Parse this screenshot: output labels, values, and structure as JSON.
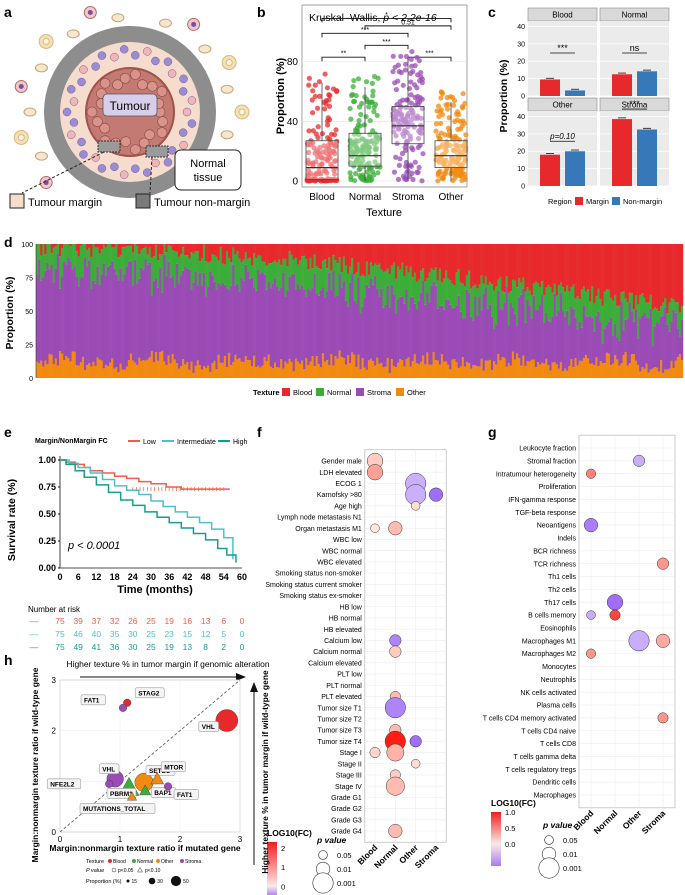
{
  "panels": {
    "a": {
      "label": "a",
      "tumour": "Tumour",
      "normal_tissue": "Normal\ntissue",
      "normal_line1": "Normal",
      "normal_line2": "tissue",
      "legend_margin": "Tumour margin",
      "legend_nonmargin": "Tumour non-margin"
    },
    "b": {
      "label": "b"
    },
    "c": {
      "label": "c"
    },
    "d": {
      "label": "d"
    },
    "e": {
      "label": "e"
    },
    "f": {
      "label": "f"
    },
    "g": {
      "label": "g"
    },
    "h": {
      "label": "h"
    }
  },
  "colors": {
    "blood": "#e8292c",
    "normal": "#3dad3a",
    "stroma": "#9a4bb5",
    "other": "#f28a10",
    "margin": "#e8292c",
    "nonmargin": "#3778b9",
    "km_low": "#ee5e48",
    "km_int": "#4cc1cc",
    "km_high": "#1a9c8a"
  },
  "chart_data": [
    {
      "id": "b",
      "type": "box",
      "title": "Kruskal–Wallis, ",
      "title_p": "p < 2.2e-16",
      "xlabel": "Texture",
      "ylabel": "Proportion (%)",
      "categories": [
        "Blood",
        "Normal",
        "Stroma",
        "Other"
      ],
      "ylim": [
        0,
        100
      ],
      "yticks": [
        "0",
        "40",
        "80"
      ],
      "boxes": [
        {
          "q1": 1,
          "median": 9,
          "q3": 27,
          "whisker_low": 0,
          "whisker_high": 66
        },
        {
          "q1": 10,
          "median": 17,
          "q3": 32,
          "whisker_low": 0,
          "whisker_high": 63
        },
        {
          "q1": 25,
          "median": 37,
          "q3": 50,
          "whisker_low": 0,
          "whisker_high": 82
        },
        {
          "q1": 9,
          "median": 17,
          "q3": 27,
          "whisker_low": 0,
          "whisker_high": 53
        }
      ],
      "comparisons": [
        {
          "from": 0,
          "to": 1,
          "label": "**"
        },
        {
          "from": 1,
          "to": 2,
          "label": "***"
        },
        {
          "from": 2,
          "to": 3,
          "label": "***"
        },
        {
          "from": 0,
          "to": 2,
          "label": "***"
        },
        {
          "from": 1,
          "to": 3,
          "label": "0.51"
        },
        {
          "from": 0,
          "to": 3,
          "label": "*"
        }
      ]
    },
    {
      "id": "c",
      "type": "bar",
      "ylabel": "Proportion (%)",
      "legend_title": "Region",
      "series_names": [
        "Margin",
        "Non-margin"
      ],
      "yticks": [
        "0",
        "10",
        "20",
        "30",
        "40"
      ],
      "ylim": [
        0,
        40
      ],
      "facets": [
        {
          "name": "Blood",
          "values": [
            9.5,
            3.2
          ],
          "sig": "***"
        },
        {
          "name": "Normal",
          "values": [
            12.5,
            14.2
          ],
          "sig": "ns"
        },
        {
          "name": "Other",
          "values": [
            18,
            20
          ],
          "sig": "p=0.10"
        },
        {
          "name": "Stroma",
          "values": [
            38.5,
            32.5
          ],
          "sig": "***"
        }
      ]
    },
    {
      "id": "d",
      "type": "stacked-bar",
      "ylabel": "Proportion (%)",
      "yticks": [
        "0",
        "25",
        "50",
        "75",
        "100"
      ],
      "ylim": [
        0,
        100
      ],
      "legend_title": "Texture",
      "series_names": [
        "Blood",
        "Normal",
        "Stroma",
        "Other"
      ],
      "n_samples": 310,
      "trend": {
        "blood_start": 2,
        "blood_end": 48,
        "normal_mean": 18,
        "stroma_start": 72,
        "stroma_end": 22,
        "other_start": 12,
        "other_end": 10
      }
    },
    {
      "id": "e",
      "type": "line",
      "title": "Margin/NonMargin FC",
      "series_names": [
        "Low",
        "Intermediate",
        "High"
      ],
      "xlabel": "Time (months)",
      "ylabel": "Survival rate (%)",
      "xticks": [
        "0",
        "6",
        "12",
        "18",
        "24",
        "30",
        "36",
        "42",
        "48",
        "54",
        "60"
      ],
      "yticks": [
        "0.00",
        "0.25",
        "0.50",
        "0.75",
        "1.00"
      ],
      "xlim": [
        0,
        60
      ],
      "ylim": [
        0,
        1
      ],
      "pvalue": "p < 0.0001",
      "series": [
        {
          "name": "Low",
          "x": [
            0,
            2,
            5,
            8,
            10,
            14,
            18,
            22,
            26,
            30,
            35,
            40,
            45,
            50,
            56
          ],
          "y": [
            1.0,
            0.98,
            0.96,
            0.93,
            0.9,
            0.88,
            0.85,
            0.83,
            0.8,
            0.78,
            0.75,
            0.73,
            0.73,
            0.73,
            0.73
          ]
        },
        {
          "name": "Intermediate",
          "x": [
            0,
            3,
            6,
            10,
            14,
            18,
            22,
            26,
            30,
            34,
            38,
            42,
            46,
            50,
            54,
            57
          ],
          "y": [
            1.0,
            0.97,
            0.93,
            0.88,
            0.82,
            0.76,
            0.72,
            0.68,
            0.62,
            0.57,
            0.52,
            0.47,
            0.42,
            0.36,
            0.28,
            0.08
          ]
        },
        {
          "name": "High",
          "x": [
            0,
            2,
            5,
            8,
            12,
            16,
            20,
            24,
            28,
            32,
            36,
            40,
            44,
            48,
            52,
            55,
            58
          ],
          "y": [
            1.0,
            0.96,
            0.9,
            0.84,
            0.77,
            0.7,
            0.63,
            0.58,
            0.52,
            0.47,
            0.42,
            0.37,
            0.32,
            0.26,
            0.18,
            0.12,
            0.05
          ]
        }
      ],
      "risk_title": "Number at risk",
      "risk_table": [
        [
          "75",
          "39",
          "37",
          "32",
          "26",
          "25",
          "19",
          "16",
          "13",
          "6",
          "0"
        ],
        [
          "75",
          "46",
          "40",
          "35",
          "30",
          "25",
          "23",
          "15",
          "12",
          "5",
          "0"
        ],
        [
          "75",
          "49",
          "41",
          "36",
          "30",
          "25",
          "19",
          "13",
          "8",
          "2",
          "0"
        ]
      ],
      "risk_marker": "—"
    },
    {
      "id": "f",
      "type": "dot",
      "rows": [
        "Gender male",
        "LDH elevated",
        "ECOG 1",
        "Karnofsky >80",
        "Age high",
        "Lymph node metastasis N1",
        "Organ metastasis M1",
        "WBC low",
        "WBC normal",
        "WBC elevated",
        "Smoking status non-smoker",
        "Smoking status current smoker",
        "Smoking status ex-smoker",
        "HB low",
        "HB normal",
        "HB elevated",
        "Calcium low",
        "Calcium normal",
        "Calcium elevated",
        "PLT low",
        "PLT normal",
        "PLT elevated",
        "Tumor size T1",
        "Tumor size T2",
        "Tumor size T3",
        "Tumor size T4",
        "Stage I",
        "Stage II",
        "Stage III",
        "Stage IV",
        "Grade G1",
        "Grade G2",
        "Grade G3",
        "Grade G4"
      ],
      "columns": [
        "Blood",
        "Normal",
        "Other",
        "Stroma"
      ],
      "dots": [
        {
          "row": 0,
          "col": 0,
          "p": 0.005,
          "fc": 0.3
        },
        {
          "row": 1,
          "col": 0,
          "p": 0.005,
          "fc": 0.8
        },
        {
          "row": 2,
          "col": 2,
          "p": 0.001,
          "fc": -0.2
        },
        {
          "row": 3,
          "col": 2,
          "p": 0.001,
          "fc": -0.2
        },
        {
          "row": 3,
          "col": 3,
          "p": 0.01,
          "fc": -0.5
        },
        {
          "row": 4,
          "col": 2,
          "p": 0.05,
          "fc": 0.1
        },
        {
          "row": 6,
          "col": 0,
          "p": 0.05,
          "fc": 0.0
        },
        {
          "row": 6,
          "col": 1,
          "p": 0.01,
          "fc": 0.5
        },
        {
          "row": 16,
          "col": 1,
          "p": 0.02,
          "fc": -0.4
        },
        {
          "row": 17,
          "col": 1,
          "p": 0.02,
          "fc": 0.3
        },
        {
          "row": 21,
          "col": 1,
          "p": 0.03,
          "fc": 0.5
        },
        {
          "row": 22,
          "col": 1,
          "p": 0.001,
          "fc": -0.4
        },
        {
          "row": 24,
          "col": 1,
          "p": 0.02,
          "fc": 0.5
        },
        {
          "row": 25,
          "col": 1,
          "p": 0.001,
          "fc": 2.3
        },
        {
          "row": 25,
          "col": 2,
          "p": 0.02,
          "fc": -0.6
        },
        {
          "row": 26,
          "col": 0,
          "p": 0.03,
          "fc": 0.2
        },
        {
          "row": 26,
          "col": 1,
          "p": 0.003,
          "fc": 0.6
        },
        {
          "row": 27,
          "col": 2,
          "p": 0.05,
          "fc": 0.1
        },
        {
          "row": 28,
          "col": 1,
          "p": 0.03,
          "fc": 0.3
        },
        {
          "row": 29,
          "col": 1,
          "p": 0.002,
          "fc": 0.5
        },
        {
          "row": 33,
          "col": 1,
          "p": 0.01,
          "fc": 0.5
        }
      ],
      "legend_fc_title": "LOG10(FC)",
      "fc_ticks": [
        "2",
        "1",
        "0"
      ],
      "fc_range": [
        -0.5,
        2.3
      ],
      "legend_p_title": "p value",
      "p_labels": [
        "0.05",
        "0.01",
        "0.001"
      ]
    },
    {
      "id": "g",
      "type": "dot",
      "rows": [
        "Leukocyte fraction",
        "Stromal fraction",
        "Intratumour heterogeneity",
        "Proliferation",
        "IFN-gamma response",
        "TGF-beta response",
        "Neoantigens",
        "Indels",
        "BCR richness",
        "TCR richness",
        "Th1 cells",
        "Th2 cells",
        "Th17 cells",
        "B cells memory",
        "Eosinophils",
        "Macrophages M1",
        "Macrophages M2",
        "Monocytes",
        "Neutrophils",
        "NK cells activated",
        "Plasma cells",
        "T cells CD4 memory activated",
        "T cells CD4 naive",
        "T cells CD8",
        "T cells gamma delta",
        "T cells regulatory tregs",
        "Dendritic cells",
        "Macrophages"
      ],
      "columns": [
        "Blood",
        "Normal",
        "Other",
        "Stroma"
      ],
      "dots": [
        {
          "row": 1,
          "col": 2,
          "p": 0.02,
          "fc": -0.3
        },
        {
          "row": 2,
          "col": 0,
          "p": 0.04,
          "fc": 0.5
        },
        {
          "row": 6,
          "col": 0,
          "p": 0.01,
          "fc": -0.6
        },
        {
          "row": 9,
          "col": 3,
          "p": 0.02,
          "fc": 0.4
        },
        {
          "row": 12,
          "col": 1,
          "p": 0.005,
          "fc": -0.7
        },
        {
          "row": 13,
          "col": 0,
          "p": 0.05,
          "fc": -0.3
        },
        {
          "row": 13,
          "col": 1,
          "p": 0.03,
          "fc": 0.8
        },
        {
          "row": 15,
          "col": 2,
          "p": 0.001,
          "fc": -0.3
        },
        {
          "row": 15,
          "col": 3,
          "p": 0.01,
          "fc": 0.3
        },
        {
          "row": 16,
          "col": 0,
          "p": 0.04,
          "fc": 0.4
        },
        {
          "row": 21,
          "col": 3,
          "p": 0.03,
          "fc": 0.4
        }
      ],
      "legend_fc_title": "LOG10(FC)",
      "fc_ticks": [
        "1.0",
        "0.5",
        "0.0"
      ],
      "fc_range": [
        -0.7,
        1.0
      ],
      "legend_p_title": "p value",
      "p_labels": [
        "0.05",
        "0.01",
        "0.001"
      ]
    },
    {
      "id": "h",
      "type": "scatter",
      "xlabel": "Margin:nonmargin texture ratio if mutated gene",
      "ylabel": "Margin:nonmargin texture ratio if wild-type gene",
      "top_arrow_text": "Higher texture % in tumor margin if genomic alteration",
      "right_arrow_text": "Higher texture % in tumor margin if wild-type gene",
      "xlim": [
        0,
        3
      ],
      "ylim": [
        0,
        3
      ],
      "xticks": [
        "0",
        "1",
        "2",
        "3"
      ],
      "yticks": [
        "0",
        "1",
        "2",
        "3"
      ],
      "points": [
        {
          "label": "STAG2",
          "x": 1.12,
          "y": 2.55,
          "texture": "Blood",
          "shape": "circle",
          "size": 2
        },
        {
          "label": "FAT1",
          "x": 1.05,
          "y": 2.45,
          "texture": "Stroma",
          "shape": "circle",
          "size": 2
        },
        {
          "label": "VHL",
          "x": 2.78,
          "y": 2.2,
          "texture": "Blood",
          "shape": "circle",
          "size": 10
        },
        {
          "label": "VHL",
          "x": 0.92,
          "y": 1.05,
          "texture": "Stroma",
          "shape": "circle",
          "size": 7
        },
        {
          "label": "NFE2L2",
          "x": 0.82,
          "y": 0.95,
          "texture": "Stroma",
          "shape": "circle",
          "size": 2
        },
        {
          "label": "SETD2",
          "x": 1.4,
          "y": 0.98,
          "texture": "Other",
          "shape": "circle",
          "size": 8
        },
        {
          "label": "MTOR",
          "x": 1.62,
          "y": 1.05,
          "texture": "Other",
          "shape": "triangle",
          "size": 5
        },
        {
          "label": "PBRM1",
          "x": 1.15,
          "y": 0.88,
          "texture": "Normal",
          "shape": "triangle",
          "size": 9
        },
        {
          "label": "BAP1",
          "x": 1.42,
          "y": 0.82,
          "texture": "Normal",
          "shape": "triangle",
          "size": 4
        },
        {
          "label": "FAT1",
          "x": 1.8,
          "y": 0.9,
          "texture": "Stroma",
          "shape": "circle",
          "size": 2
        },
        {
          "label": "MUTATIONS_TOTAL",
          "x": 1.2,
          "y": 0.7,
          "texture": "Other",
          "shape": "triangle",
          "size": 3
        }
      ],
      "legend": {
        "texture": "Texture",
        "pvalue": "P value",
        "proportion": "Proportion (%)",
        "textures": [
          "Blood",
          "Normal",
          "Other",
          "Stroma"
        ],
        "p_items": [
          "p<0.05",
          "p<0.10"
        ],
        "prop_items": [
          "15",
          "30",
          "50"
        ]
      }
    }
  ]
}
